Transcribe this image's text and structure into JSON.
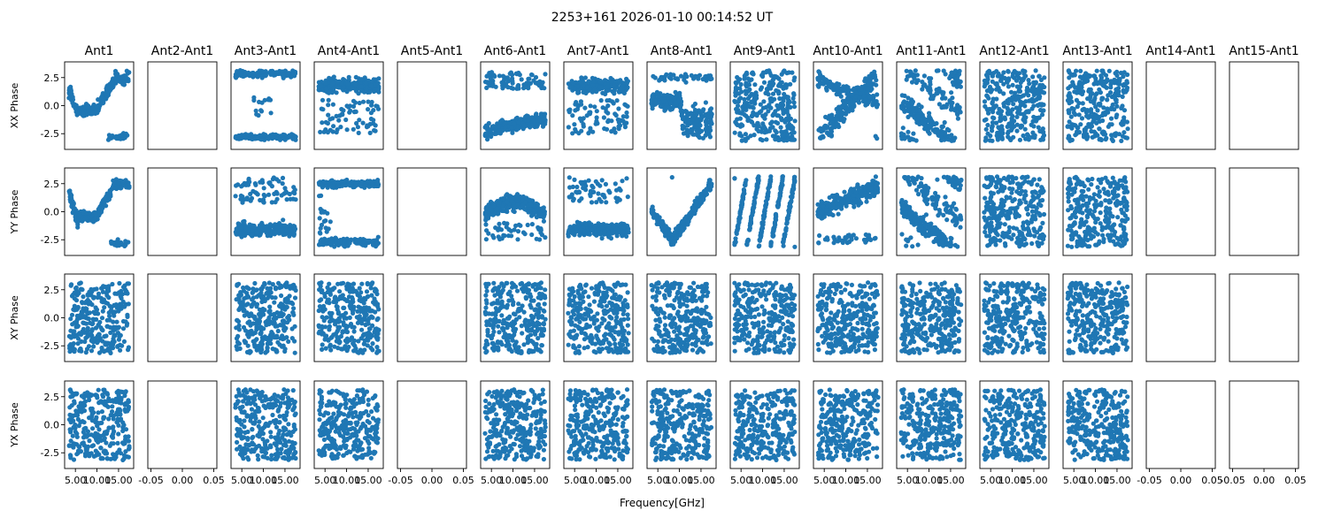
{
  "figure": {
    "title": "2253+161 2026-01-10 00:14:52 UT",
    "xlabel": "Frequency[GHz]"
  },
  "chart_data": {
    "type": "scatter",
    "title": "2253+161 2026-01-10 00:14:52 UT",
    "xlabel": "Frequency[GHz]",
    "marker_color": "#1f77b4",
    "grid": false,
    "columns": [
      "Ant1",
      "Ant2-Ant1",
      "Ant3-Ant1",
      "Ant4-Ant1",
      "Ant5-Ant1",
      "Ant6-Ant1",
      "Ant7-Ant1",
      "Ant8-Ant1",
      "Ant9-Ant1",
      "Ant10-Ant1",
      "Ant11-Ant1",
      "Ant12-Ant1",
      "Ant13-Ant1",
      "Ant14-Ant1",
      "Ant15-Ant1"
    ],
    "rows": [
      {
        "ylabel": "XX Phase",
        "patterns": [
          "wave",
          "empty",
          "twoband_edges",
          "top_band",
          "empty",
          "bottom_cluster",
          "top_band",
          "mid_band",
          "random",
          "diagonal_up",
          "diagonal_down",
          "random",
          "random",
          "empty",
          "empty"
        ]
      },
      {
        "ylabel": "YY Phase",
        "patterns": [
          "wave",
          "empty",
          "low_band",
          "two_band",
          "empty",
          "arch",
          "low_band",
          "v_shape",
          "stripes",
          "rising",
          "diagonal_down",
          "random",
          "random",
          "empty",
          "empty"
        ]
      },
      {
        "ylabel": "XY Phase",
        "patterns": [
          "random",
          "empty",
          "random",
          "random",
          "empty",
          "random",
          "random",
          "random",
          "random",
          "random",
          "random",
          "random",
          "random",
          "empty",
          "empty"
        ]
      },
      {
        "ylabel": "YX Phase",
        "patterns": [
          "random",
          "empty",
          "random",
          "random",
          "empty",
          "random",
          "random",
          "random",
          "random",
          "random",
          "random",
          "random",
          "random",
          "empty",
          "empty"
        ]
      }
    ],
    "xlim_data": [
      2.5,
      18.5
    ],
    "xlim_empty": [
      -0.055,
      0.055
    ],
    "ylim": [
      -3.9,
      3.9
    ],
    "x_ticks_data": [
      5.0,
      10.0,
      15.0
    ],
    "x_tick_labels_data": [
      "5.00",
      "10.00",
      "15.00"
    ],
    "x_ticks_empty": [
      -0.05,
      0.0,
      0.05
    ],
    "x_tick_labels_empty": [
      "-0.05",
      "0.00",
      "0.05"
    ],
    "y_ticks": [
      2.5,
      0.0,
      -2.5
    ],
    "y_tick_labels": [
      "2.5",
      "0.0",
      "-2.5"
    ],
    "phase_range": [
      -3.14159,
      3.14159
    ]
  }
}
